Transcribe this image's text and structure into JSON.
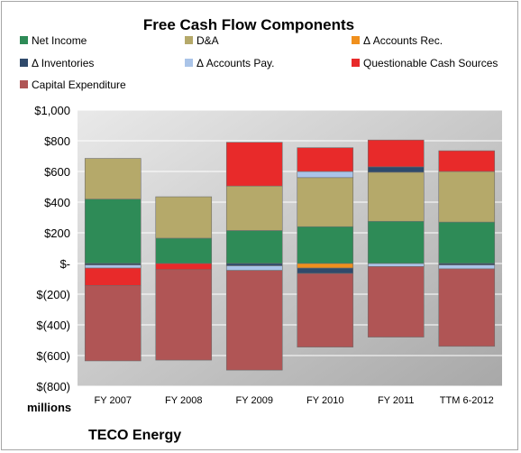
{
  "chart_data": {
    "type": "bar",
    "stacked": true,
    "title": "Free Cash Flow Components",
    "units_label": "millions",
    "company": "TECO Energy",
    "categories": [
      "FY 2007",
      "FY 2008",
      "FY 2009",
      "FY 2010",
      "FY 2011",
      "TTM 6-2012"
    ],
    "ylim": [
      -800,
      1000
    ],
    "yticks": [
      -800,
      -600,
      -400,
      -200,
      0,
      200,
      400,
      600,
      800,
      1000
    ],
    "ytick_labels": [
      "$(800)",
      "$(600)",
      "$(400)",
      "$(200)",
      "$-",
      "$200",
      "$400",
      "$600",
      "$800",
      "$1,000"
    ],
    "grid": true,
    "legend_position": "top",
    "series": [
      {
        "name": "Net Income",
        "color": "#2e8b57",
        "values": [
          420,
          165,
          215,
          240,
          275,
          270
        ]
      },
      {
        "name": "D&A",
        "color": "#b5a96a",
        "values": [
          265,
          270,
          290,
          320,
          320,
          330
        ]
      },
      {
        "name": "Δ Accounts Rec.",
        "color": "#f0901e",
        "values": [
          0,
          0,
          0,
          -30,
          0,
          0
        ]
      },
      {
        "name": "Δ Inventories",
        "color": "#2f4a6b",
        "values": [
          -10,
          0,
          -15,
          -35,
          35,
          -10
        ]
      },
      {
        "name": "Δ Accounts Pay.",
        "color": "#aac4e8",
        "values": [
          -20,
          0,
          -30,
          40,
          -20,
          -25
        ]
      },
      {
        "name": "Questionable Cash Sources",
        "color": "#e82a2a",
        "values": [
          -115,
          -40,
          285,
          155,
          175,
          135
        ]
      },
      {
        "name": "Capital Expenditure",
        "color": "#b05555",
        "values": [
          -490,
          -590,
          -650,
          -480,
          -460,
          -505
        ]
      }
    ]
  }
}
